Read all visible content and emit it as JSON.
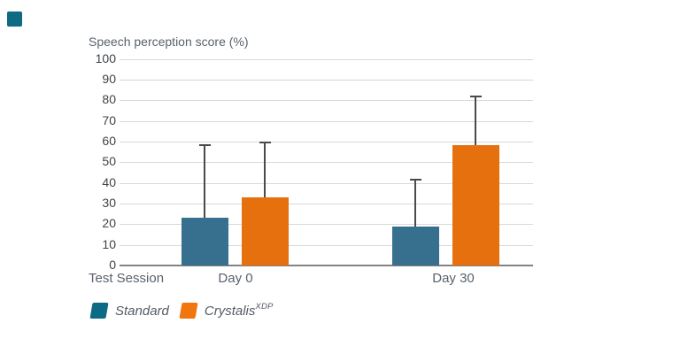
{
  "corner_marker": {
    "color": "#0f6a84"
  },
  "chart_data": {
    "type": "bar",
    "title": "Speech perception score (%)",
    "xlabel": "Test Session",
    "categories": [
      "Day 0",
      "Day 30"
    ],
    "series": [
      {
        "name": "Standard",
        "color": "#376f8e",
        "legend_color": "#0d6a85",
        "values": [
          23,
          19
        ],
        "error_upper": [
          58.5,
          41.5
        ]
      },
      {
        "name": "Crystalis",
        "name_sup": "XDP",
        "color": "#e5700d",
        "legend_color": "#f1760e",
        "values": [
          33,
          58.5
        ],
        "error_upper": [
          59.5,
          82
        ]
      }
    ],
    "ylim": [
      0,
      100
    ],
    "ytick_step": 10,
    "grid": true,
    "legend_position": "bottom-left",
    "error_bars": "upper-only",
    "colors": {
      "gridline": "#d9d9d9",
      "axisline": "#848484",
      "error_bar": "#4a4a4a",
      "tick_label": "#3f4347",
      "text_gray": "#59626c"
    }
  }
}
